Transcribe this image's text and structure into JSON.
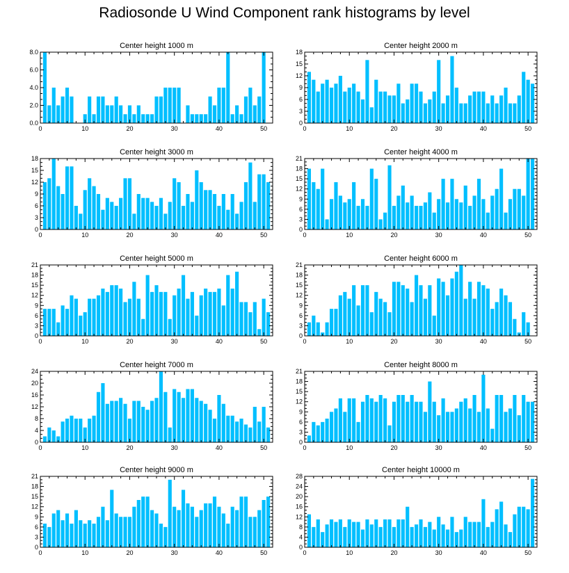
{
  "title": "Radiosonde U Wind Component rank histograms by level",
  "bar_color": "#00BFFF",
  "x_ticks": [
    0,
    10,
    20,
    30,
    40,
    50
  ],
  "chart_data": [
    {
      "type": "bar",
      "title": "Center height 1000 m",
      "ylim": [
        0,
        8
      ],
      "yticks": [
        "0.0",
        "2.0",
        "4.0",
        "6.0",
        "8.0"
      ],
      "x": [
        1,
        2,
        3,
        4,
        5,
        6,
        7,
        8,
        9,
        10,
        11,
        12,
        13,
        14,
        15,
        16,
        17,
        18,
        19,
        20,
        21,
        22,
        23,
        24,
        25,
        26,
        27,
        28,
        29,
        30,
        31,
        32,
        33,
        34,
        35,
        36,
        37,
        38,
        39,
        40,
        41,
        42,
        43,
        44,
        45,
        46,
        47,
        48,
        49,
        50,
        51
      ],
      "values": [
        8,
        2,
        4,
        2,
        3,
        4,
        3,
        0,
        0,
        1,
        3,
        1,
        3,
        3,
        2,
        2,
        3,
        2,
        1,
        2,
        1,
        2,
        1,
        1,
        1,
        3,
        3,
        4,
        4,
        4,
        4,
        0,
        2,
        1,
        1,
        1,
        1,
        3,
        2,
        4,
        4,
        8,
        1,
        2,
        1,
        3,
        4,
        2,
        3,
        8,
        0
      ]
    },
    {
      "type": "bar",
      "title": "Center height 2000 m",
      "ylim": [
        0,
        18
      ],
      "yticks": [
        "0",
        "3",
        "6",
        "9",
        "12",
        "15",
        "18"
      ],
      "x": [
        1,
        2,
        3,
        4,
        5,
        6,
        7,
        8,
        9,
        10,
        11,
        12,
        13,
        14,
        15,
        16,
        17,
        18,
        19,
        20,
        21,
        22,
        23,
        24,
        25,
        26,
        27,
        28,
        29,
        30,
        31,
        32,
        33,
        34,
        35,
        36,
        37,
        38,
        39,
        40,
        41,
        42,
        43,
        44,
        45,
        46,
        47,
        48,
        49,
        50,
        51
      ],
      "values": [
        13,
        11,
        8,
        10,
        11,
        9,
        10,
        12,
        8,
        9,
        10,
        8,
        6,
        16,
        4,
        11,
        8,
        8,
        7,
        7,
        10,
        5,
        6,
        10,
        10,
        8,
        5,
        6,
        8,
        16,
        5,
        7,
        17,
        9,
        5,
        5,
        7,
        8,
        8,
        8,
        5,
        7,
        5,
        7,
        9,
        5,
        5,
        7,
        13,
        11,
        10
      ]
    },
    {
      "type": "bar",
      "title": "Center height 3000 m",
      "ylim": [
        0,
        18
      ],
      "yticks": [
        "0",
        "3",
        "6",
        "9",
        "12",
        "15",
        "18"
      ],
      "x": [
        1,
        2,
        3,
        4,
        5,
        6,
        7,
        8,
        9,
        10,
        11,
        12,
        13,
        14,
        15,
        16,
        17,
        18,
        19,
        20,
        21,
        22,
        23,
        24,
        25,
        26,
        27,
        28,
        29,
        30,
        31,
        32,
        33,
        34,
        35,
        36,
        37,
        38,
        39,
        40,
        41,
        42,
        43,
        44,
        45,
        46,
        47,
        48,
        49,
        50,
        51
      ],
      "values": [
        12,
        13,
        18,
        11,
        9,
        16,
        16,
        6,
        4,
        10,
        13,
        11,
        9,
        5,
        8,
        7,
        6,
        8,
        13,
        13,
        4,
        9,
        8,
        8,
        7,
        6,
        8,
        4,
        7,
        13,
        12,
        6,
        9,
        7,
        15,
        12,
        10,
        10,
        9,
        6,
        9,
        5,
        9,
        4,
        7,
        12,
        17,
        7,
        14,
        14,
        12
      ]
    },
    {
      "type": "bar",
      "title": "Center height 4000 m",
      "ylim": [
        0,
        21
      ],
      "yticks": [
        "0",
        "3",
        "6",
        "9",
        "12",
        "15",
        "18",
        "21"
      ],
      "x": [
        1,
        2,
        3,
        4,
        5,
        6,
        7,
        8,
        9,
        10,
        11,
        12,
        13,
        14,
        15,
        16,
        17,
        18,
        19,
        20,
        21,
        22,
        23,
        24,
        25,
        26,
        27,
        28,
        29,
        30,
        31,
        32,
        33,
        34,
        35,
        36,
        37,
        38,
        39,
        40,
        41,
        42,
        43,
        44,
        45,
        46,
        47,
        48,
        49,
        50,
        51
      ],
      "values": [
        18,
        14,
        12,
        18,
        3,
        9,
        14,
        10,
        8,
        9,
        14,
        7,
        9,
        7,
        18,
        15,
        3,
        5,
        19,
        7,
        10,
        13,
        8,
        10,
        7,
        7,
        8,
        11,
        5,
        9,
        15,
        8,
        15,
        9,
        8,
        13,
        7,
        10,
        15,
        9,
        5,
        10,
        12,
        18,
        5,
        9,
        12,
        12,
        10,
        21,
        21
      ]
    },
    {
      "type": "bar",
      "title": "Center height 5000 m",
      "ylim": [
        0,
        21
      ],
      "yticks": [
        "0",
        "3",
        "6",
        "9",
        "12",
        "15",
        "18",
        "21"
      ],
      "x": [
        1,
        2,
        3,
        4,
        5,
        6,
        7,
        8,
        9,
        10,
        11,
        12,
        13,
        14,
        15,
        16,
        17,
        18,
        19,
        20,
        21,
        22,
        23,
        24,
        25,
        26,
        27,
        28,
        29,
        30,
        31,
        32,
        33,
        34,
        35,
        36,
        37,
        38,
        39,
        40,
        41,
        42,
        43,
        44,
        45,
        46,
        47,
        48,
        49,
        50,
        51
      ],
      "values": [
        8,
        8,
        8,
        4,
        9,
        8,
        12,
        11,
        6,
        7,
        11,
        11,
        12,
        14,
        13,
        15,
        15,
        14,
        10,
        11,
        16,
        11,
        5,
        18,
        13,
        15,
        13,
        13,
        5,
        12,
        14,
        18,
        11,
        13,
        6,
        12,
        14,
        13,
        13,
        14,
        9,
        18,
        14,
        19,
        10,
        10,
        7,
        10,
        2,
        11,
        7
      ]
    },
    {
      "type": "bar",
      "title": "Center height 6000 m",
      "ylim": [
        0,
        21
      ],
      "yticks": [
        "0",
        "3",
        "6",
        "9",
        "12",
        "15",
        "18",
        "21"
      ],
      "x": [
        1,
        2,
        3,
        4,
        5,
        6,
        7,
        8,
        9,
        10,
        11,
        12,
        13,
        14,
        15,
        16,
        17,
        18,
        19,
        20,
        21,
        22,
        23,
        24,
        25,
        26,
        27,
        28,
        29,
        30,
        31,
        32,
        33,
        34,
        35,
        36,
        37,
        38,
        39,
        40,
        41,
        42,
        43,
        44,
        45,
        46,
        47,
        48,
        49,
        50,
        51
      ],
      "values": [
        4,
        6,
        4,
        1,
        4,
        8,
        8,
        12,
        13,
        11,
        15,
        9,
        15,
        15,
        7,
        13,
        11,
        10,
        7,
        16,
        16,
        15,
        14,
        10,
        18,
        15,
        11,
        15,
        6,
        17,
        16,
        12,
        17,
        19,
        21,
        11,
        16,
        11,
        16,
        15,
        14,
        8,
        10,
        14,
        12,
        10,
        5,
        1,
        7,
        4,
        0
      ]
    },
    {
      "type": "bar",
      "title": "Center height 7000 m",
      "ylim": [
        0,
        24
      ],
      "yticks": [
        "0",
        "4",
        "8",
        "12",
        "16",
        "20",
        "24"
      ],
      "x": [
        1,
        2,
        3,
        4,
        5,
        6,
        7,
        8,
        9,
        10,
        11,
        12,
        13,
        14,
        15,
        16,
        17,
        18,
        19,
        20,
        21,
        22,
        23,
        24,
        25,
        26,
        27,
        28,
        29,
        30,
        31,
        32,
        33,
        34,
        35,
        36,
        37,
        38,
        39,
        40,
        41,
        42,
        43,
        44,
        45,
        46,
        47,
        48,
        49,
        50,
        51
      ],
      "values": [
        2,
        5,
        4,
        2,
        7,
        8,
        9,
        8,
        8,
        5,
        8,
        9,
        17,
        20,
        13,
        14,
        14,
        15,
        13,
        8,
        14,
        14,
        12,
        11,
        14,
        15,
        24,
        17,
        5,
        18,
        17,
        15,
        18,
        18,
        15,
        14,
        13,
        11,
        8,
        16,
        13,
        9,
        9,
        7,
        8,
        6,
        5,
        12,
        7,
        12,
        5
      ]
    },
    {
      "type": "bar",
      "title": "Center height 8000 m",
      "ylim": [
        0,
        21
      ],
      "yticks": [
        "0",
        "3",
        "6",
        "9",
        "12",
        "15",
        "18",
        "21"
      ],
      "x": [
        1,
        2,
        3,
        4,
        5,
        6,
        7,
        8,
        9,
        10,
        11,
        12,
        13,
        14,
        15,
        16,
        17,
        18,
        19,
        20,
        21,
        22,
        23,
        24,
        25,
        26,
        27,
        28,
        29,
        30,
        31,
        32,
        33,
        34,
        35,
        36,
        37,
        38,
        39,
        40,
        41,
        42,
        43,
        44,
        45,
        46,
        47,
        48,
        49,
        50,
        51
      ],
      "values": [
        2,
        6,
        5,
        6,
        7,
        9,
        10,
        13,
        9,
        13,
        13,
        6,
        12,
        14,
        13,
        12,
        14,
        13,
        5,
        12,
        14,
        14,
        12,
        14,
        12,
        12,
        9,
        18,
        12,
        8,
        13,
        9,
        9,
        10,
        12,
        13,
        10,
        14,
        9,
        20,
        10,
        4,
        14,
        14,
        9,
        10,
        14,
        8,
        14,
        12,
        12
      ]
    },
    {
      "type": "bar",
      "title": "Center height 9000 m",
      "ylim": [
        0,
        21
      ],
      "yticks": [
        "0",
        "3",
        "6",
        "9",
        "12",
        "15",
        "18",
        "21"
      ],
      "x": [
        1,
        2,
        3,
        4,
        5,
        6,
        7,
        8,
        9,
        10,
        11,
        12,
        13,
        14,
        15,
        16,
        17,
        18,
        19,
        20,
        21,
        22,
        23,
        24,
        25,
        26,
        27,
        28,
        29,
        30,
        31,
        32,
        33,
        34,
        35,
        36,
        37,
        38,
        39,
        40,
        41,
        42,
        43,
        44,
        45,
        46,
        47,
        48,
        49,
        50,
        51
      ],
      "values": [
        7,
        6,
        10,
        11,
        8,
        10,
        7,
        11,
        8,
        7,
        8,
        7,
        9,
        12,
        8,
        17,
        10,
        9,
        9,
        9,
        12,
        14,
        15,
        15,
        11,
        10,
        7,
        6,
        20,
        12,
        11,
        17,
        13,
        12,
        9,
        11,
        13,
        13,
        15,
        12,
        10,
        7,
        12,
        11,
        15,
        15,
        9,
        9,
        11,
        14,
        15
      ]
    },
    {
      "type": "bar",
      "title": "Center height 10000 m",
      "ylim": [
        0,
        28
      ],
      "yticks": [
        "0",
        "4",
        "8",
        "12",
        "16",
        "20",
        "24",
        "28"
      ],
      "x": [
        1,
        2,
        3,
        4,
        5,
        6,
        7,
        8,
        9,
        10,
        11,
        12,
        13,
        14,
        15,
        16,
        17,
        18,
        19,
        20,
        21,
        22,
        23,
        24,
        25,
        26,
        27,
        28,
        29,
        30,
        31,
        32,
        33,
        34,
        35,
        36,
        37,
        38,
        39,
        40,
        41,
        42,
        43,
        44,
        45,
        46,
        47,
        48,
        49,
        50,
        51
      ],
      "values": [
        13,
        8,
        11,
        6,
        9,
        11,
        10,
        11,
        8,
        11,
        10,
        10,
        7,
        11,
        9,
        11,
        8,
        11,
        11,
        8,
        11,
        11,
        16,
        8,
        9,
        11,
        8,
        10,
        7,
        12,
        9,
        7,
        12,
        6,
        7,
        12,
        10,
        10,
        10,
        19,
        8,
        10,
        15,
        18,
        9,
        6,
        13,
        16,
        16,
        15,
        27
      ]
    }
  ]
}
